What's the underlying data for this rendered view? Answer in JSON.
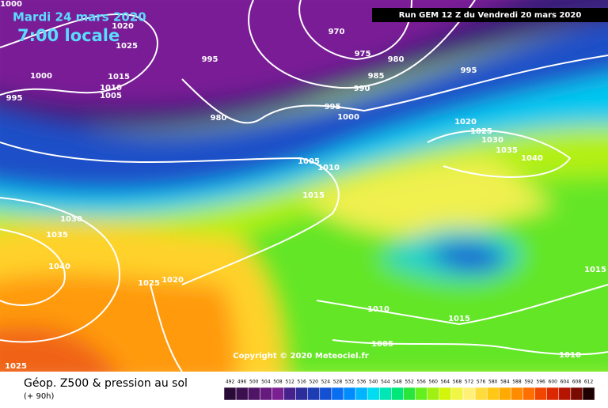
{
  "header": {
    "date": "Mardi 24 mars 2020",
    "time": "7:00 locale",
    "run": "Run GEM 12 Z du Vendredi 20 mars 2020"
  },
  "copyright": "Copyright © 2020 Meteociel.fr",
  "footer": {
    "title": "Géop. Z500 & pression au sol",
    "lead": "(+ 90h)"
  },
  "isobar_labels": [
    "1000",
    "1020",
    "1025",
    "995",
    "970",
    "975",
    "980",
    "985",
    "990",
    "995",
    "1000",
    "995",
    "1015",
    "1010",
    "1005",
    "980",
    "995",
    "1000",
    "1020",
    "1025",
    "1030",
    "1035",
    "1040",
    "1005",
    "1010",
    "1015",
    "1030",
    "1035",
    "1040",
    "1025",
    "1020",
    "1010",
    "1015",
    "1005",
    "1015",
    "1010",
    "1025"
  ],
  "legend": [
    {
      "label": "492",
      "color": "#2a0a36"
    },
    {
      "label": "496",
      "color": "#3c0f4e"
    },
    {
      "label": "500",
      "color": "#501466"
    },
    {
      "label": "504",
      "color": "#661a7e"
    },
    {
      "label": "508",
      "color": "#7a2092"
    },
    {
      "label": "512",
      "color": "#46238c"
    },
    {
      "label": "516",
      "color": "#2c2c9a"
    },
    {
      "label": "520",
      "color": "#1e3cb4"
    },
    {
      "label": "524",
      "color": "#1450d2"
    },
    {
      "label": "528",
      "color": "#0a6ef0"
    },
    {
      "label": "532",
      "color": "#008cff"
    },
    {
      "label": "536",
      "color": "#00b4ff"
    },
    {
      "label": "540",
      "color": "#00dcf0"
    },
    {
      "label": "544",
      "color": "#00e6b4"
    },
    {
      "label": "548",
      "color": "#00e678"
    },
    {
      "label": "552",
      "color": "#28e63c"
    },
    {
      "label": "556",
      "color": "#64f01e"
    },
    {
      "label": "560",
      "color": "#a0f014"
    },
    {
      "label": "564",
      "color": "#d2f50a"
    },
    {
      "label": "568",
      "color": "#f0f546"
    },
    {
      "label": "572",
      "color": "#fff078"
    },
    {
      "label": "576",
      "color": "#ffdc3c"
    },
    {
      "label": "580",
      "color": "#ffc814"
    },
    {
      "label": "584",
      "color": "#ffaa00"
    },
    {
      "label": "588",
      "color": "#ff8c00"
    },
    {
      "label": "592",
      "color": "#ff6e00"
    },
    {
      "label": "596",
      "color": "#f04600"
    },
    {
      "label": "600",
      "color": "#dc2800"
    },
    {
      "label": "604",
      "color": "#b41400"
    },
    {
      "label": "608",
      "color": "#780a00"
    },
    {
      "label": "612",
      "color": "#1e0000"
    }
  ]
}
